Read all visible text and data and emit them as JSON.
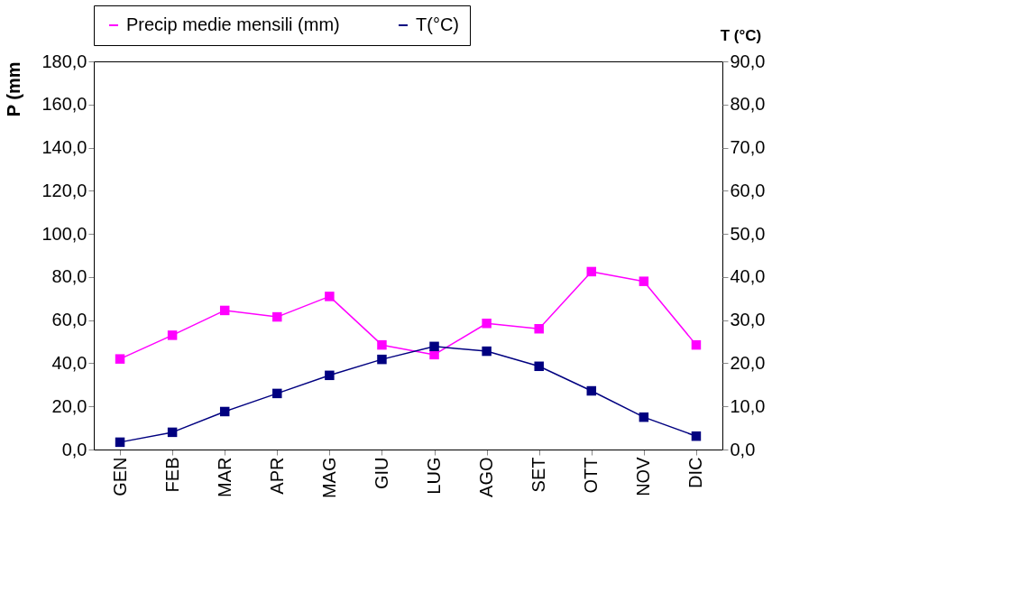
{
  "chart_data": {
    "type": "line",
    "categories": [
      "GEN",
      "FEB",
      "MAR",
      "APR",
      "MAG",
      "GIU",
      "LUG",
      "AGO",
      "SET",
      "OTT",
      "NOV",
      "DIC"
    ],
    "series": [
      {
        "name": "Precip medie mensili (mm)",
        "color": "#ff00ff",
        "values": [
          42.0,
          53.0,
          64.5,
          61.5,
          71.0,
          48.5,
          44.0,
          58.5,
          56.0,
          82.5,
          78.0,
          48.5
        ]
      },
      {
        "name": "T(°C)",
        "color": "#000080",
        "axis": "y2",
        "values": [
          1.7,
          4.0,
          8.8,
          13.0,
          17.2,
          20.9,
          23.9,
          22.8,
          19.3,
          13.6,
          7.5,
          3.1
        ]
      }
    ],
    "ylabel": "P (mm",
    "y2label": "T (°C)",
    "ylim": [
      0,
      180
    ],
    "yticks": [
      {
        "value": 0,
        "label": "0,0"
      },
      {
        "value": 20,
        "label": "20,0"
      },
      {
        "value": 40,
        "label": "40,0"
      },
      {
        "value": 60,
        "label": "60,0"
      },
      {
        "value": 80,
        "label": "80,0"
      },
      {
        "value": 100,
        "label": "100,0"
      },
      {
        "value": 120,
        "label": "120,0"
      },
      {
        "value": 140,
        "label": "140,0"
      },
      {
        "value": 160,
        "label": "160,0"
      },
      {
        "value": 180,
        "label": "180,0"
      }
    ],
    "y2lim": [
      0,
      90
    ],
    "y2ticks": [
      {
        "value": 0,
        "label": "0,0"
      },
      {
        "value": 10,
        "label": "10,0"
      },
      {
        "value": 20,
        "label": "20,0"
      },
      {
        "value": 30,
        "label": "30,0"
      },
      {
        "value": 40,
        "label": "40,0"
      },
      {
        "value": 50,
        "label": "50,0"
      },
      {
        "value": 60,
        "label": "60,0"
      },
      {
        "value": 70,
        "label": "70,0"
      },
      {
        "value": 80,
        "label": "80,0"
      },
      {
        "value": 90,
        "label": "90,0"
      }
    ],
    "marker": "square",
    "grid": false,
    "legend": "top"
  }
}
